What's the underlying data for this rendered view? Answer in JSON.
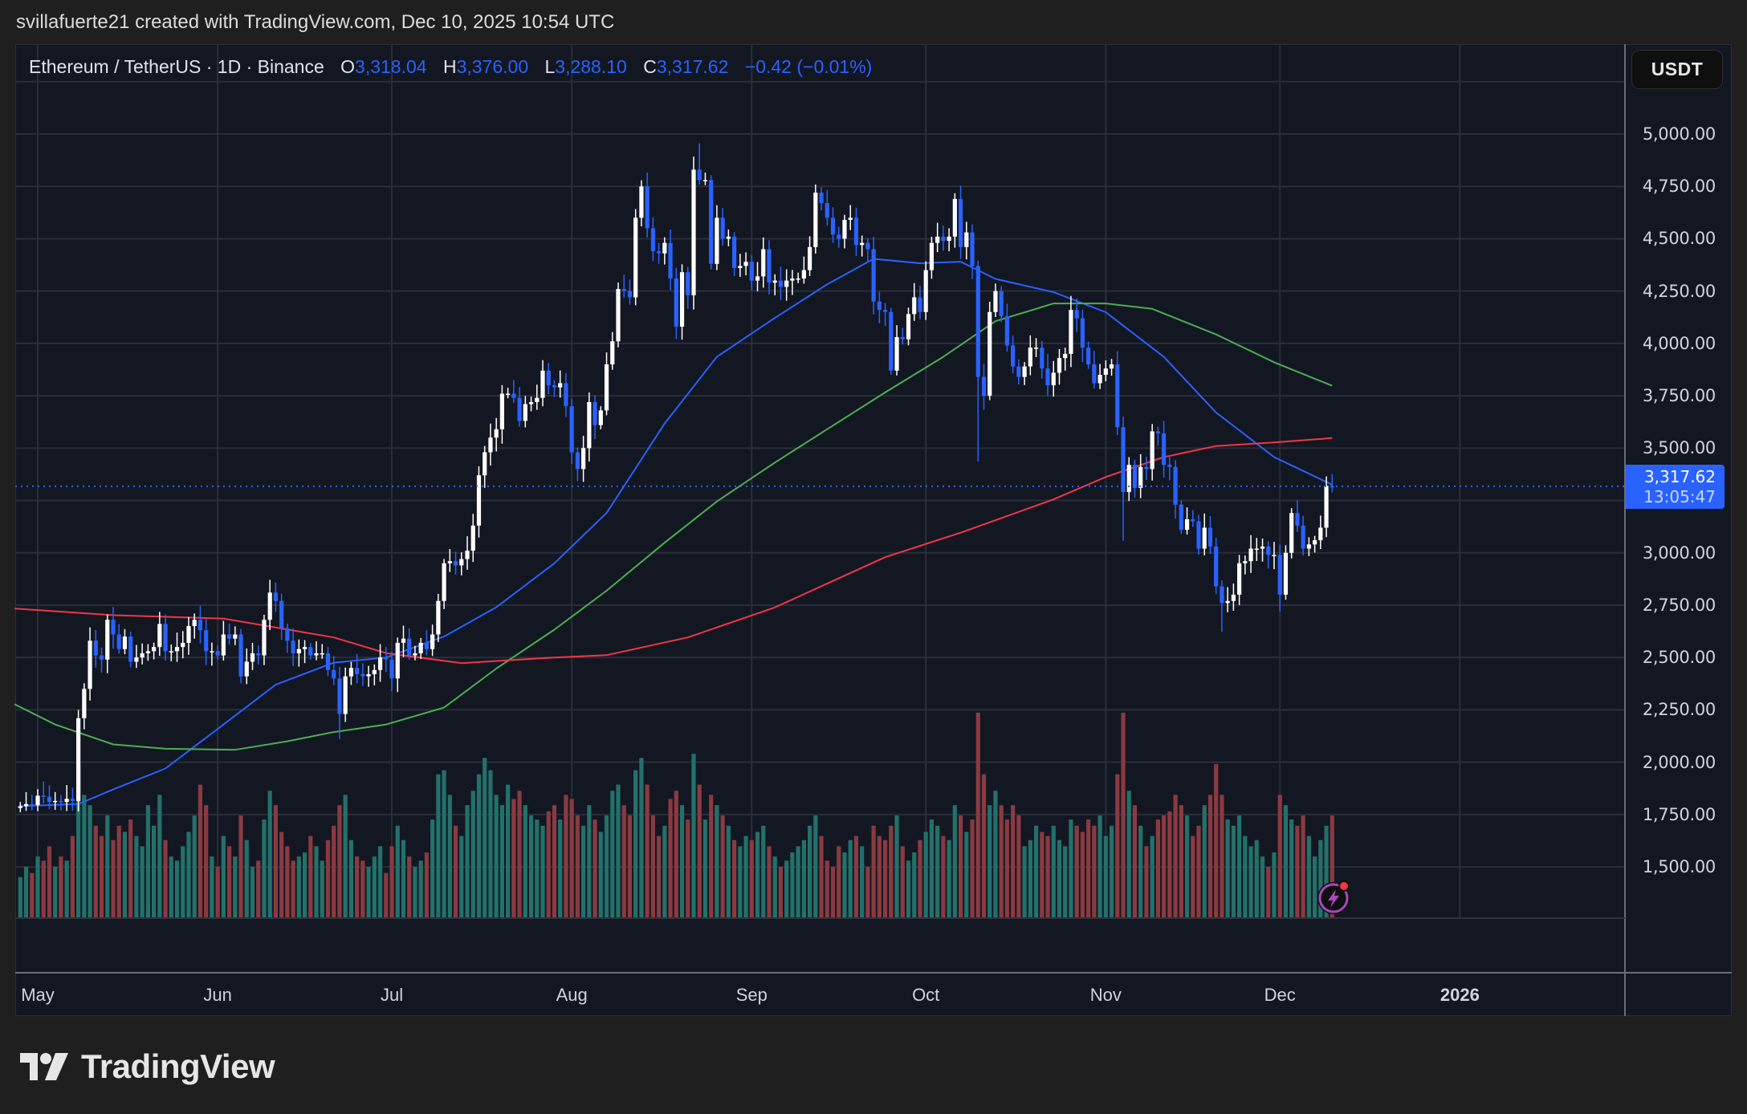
{
  "header": {
    "credit": "svillafuerte21 created with TradingView.com, Dec 10, 2025 10:54 UTC"
  },
  "legend": {
    "symbol": "Ethereum / TetherUS · 1D · Binance",
    "o_label": "O",
    "o": "3,318.04",
    "h_label": "H",
    "h": "3,376.00",
    "l_label": "L",
    "l": "3,288.10",
    "c_label": "C",
    "c": "3,317.62",
    "change": "−0.42 (−0.01%)"
  },
  "currency_button": "USDT",
  "last_price": {
    "value": "3,317.62",
    "countdown": "13:05:47"
  },
  "logo": {
    "text": "TradingView"
  },
  "colors": {
    "background": "#131722",
    "page": "#1f1f1f",
    "grid": "#2a2e39",
    "up_candle": "#ffffff",
    "down_candle": "#2962ff",
    "volume_up": "#22716a",
    "volume_down": "#8a3a40",
    "accent": "#2962ff",
    "alert_icon": "#ab47bc"
  },
  "chart_data": {
    "type": "candlestick",
    "title": "Ethereum / TetherUS · 1D · Binance",
    "interval": "1D",
    "first_date": "2025-04-28",
    "ylim": [
      1300,
      5250
    ],
    "y_axis": {
      "position": "right",
      "unit": "USDT",
      "ticks": [
        {
          "value": 5000,
          "label": "5,000.00"
        },
        {
          "value": 4750,
          "label": "4,750.00"
        },
        {
          "value": 4500,
          "label": "4,500.00"
        },
        {
          "value": 4250,
          "label": "4,250.00"
        },
        {
          "value": 4000,
          "label": "4,000.00"
        },
        {
          "value": 3750,
          "label": "3,750.00"
        },
        {
          "value": 3500,
          "label": "3,500.00"
        },
        {
          "value": 3000,
          "label": "3,000.00"
        },
        {
          "value": 2750,
          "label": "2,750.00"
        },
        {
          "value": 2500,
          "label": "2,500.00"
        },
        {
          "value": 2250,
          "label": "2,250.00"
        },
        {
          "value": 2000,
          "label": "2,000.00"
        },
        {
          "value": 1750,
          "label": "1,750.00"
        },
        {
          "value": 1500,
          "label": "1,500.00"
        }
      ]
    },
    "x_axis": {
      "ticks": [
        {
          "date": "2025-05-01",
          "label": "May"
        },
        {
          "date": "2025-06-01",
          "label": "Jun"
        },
        {
          "date": "2025-07-01",
          "label": "Jul"
        },
        {
          "date": "2025-08-01",
          "label": "Aug"
        },
        {
          "date": "2025-09-01",
          "label": "Sep"
        },
        {
          "date": "2025-10-01",
          "label": "Oct"
        },
        {
          "date": "2025-11-01",
          "label": "Nov"
        },
        {
          "date": "2025-12-01",
          "label": "Dec"
        },
        {
          "date": "2026-01-01",
          "label": "2026",
          "bold": true
        }
      ]
    },
    "grid": true,
    "last_candle": {
      "open": 3318.04,
      "high": 3376.0,
      "low": 3288.1,
      "close": 3317.62
    },
    "closes": [
      1790,
      1800,
      1795,
      1840,
      1835,
      1810,
      1815,
      1810,
      1825,
      1815,
      2210,
      2350,
      2580,
      2510,
      2490,
      2680,
      2610,
      2540,
      2600,
      2480,
      2500,
      2520,
      2530,
      2550,
      2660,
      2530,
      2530,
      2550,
      2570,
      2650,
      2680,
      2630,
      2530,
      2530,
      2510,
      2610,
      2590,
      2610,
      2410,
      2480,
      2520,
      2510,
      2680,
      2810,
      2770,
      2640,
      2580,
      2520,
      2540,
      2550,
      2510,
      2520,
      2520,
      2440,
      2400,
      2230,
      2410,
      2450,
      2420,
      2410,
      2420,
      2440,
      2500,
      2490,
      2400,
      2570,
      2590,
      2510,
      2520,
      2570,
      2540,
      2610,
      2770,
      2950,
      2960,
      2940,
      2970,
      3010,
      3130,
      3370,
      3480,
      3550,
      3590,
      3760,
      3760,
      3740,
      3630,
      3710,
      3720,
      3740,
      3870,
      3800,
      3790,
      3810,
      3700,
      3480,
      3400,
      3500,
      3720,
      3610,
      3680,
      3900,
      4010,
      4260,
      4250,
      4220,
      4600,
      4750,
      4550,
      4440,
      4430,
      4480,
      4310,
      4080,
      4340,
      4230,
      4830,
      4780,
      4780,
      4380,
      4600,
      4500,
      4510,
      4360,
      4370,
      4390,
      4300,
      4320,
      4450,
      4290,
      4300,
      4270,
      4300,
      4310,
      4310,
      4350,
      4460,
      4720,
      4670,
      4600,
      4520,
      4500,
      4590,
      4600,
      4470,
      4480,
      4450,
      4200,
      4160,
      4150,
      3870,
      4030,
      4020,
      4140,
      4220,
      4150,
      4350,
      4480,
      4510,
      4490,
      4510,
      4690,
      4460,
      4530,
      4370,
      3840,
      3750,
      4150,
      4250,
      4130,
      3990,
      3890,
      3840,
      3890,
      3980,
      3980,
      3880,
      3800,
      3860,
      3930,
      3950,
      4160,
      4120,
      3980,
      3900,
      3810,
      3850,
      3880,
      3900,
      3600,
      3290,
      3420,
      3310,
      3410,
      3400,
      3580,
      3570,
      3420,
      3410,
      3230,
      3110,
      3160,
      3150,
      3020,
      3120,
      3030,
      2840,
      2760,
      2770,
      2800,
      2950,
      2960,
      3020,
      3020,
      3030,
      2990,
      2990,
      2800,
      3000,
      3190,
      3130,
      3020,
      3040,
      3060,
      3120,
      3320,
      3317.62
    ],
    "notable_wicks": [
      {
        "date": "2025-06-22",
        "low": 2111
      },
      {
        "date": "2025-08-23",
        "high": 4956
      },
      {
        "date": "2025-10-10",
        "low": 3435
      },
      {
        "date": "2025-11-04",
        "low": 3057
      },
      {
        "date": "2025-11-21",
        "low": 2623
      },
      {
        "date": "2025-12-01",
        "low": 2719
      }
    ],
    "volume_relative": [
      20,
      25,
      22,
      30,
      28,
      35,
      25,
      30,
      28,
      40,
      75,
      60,
      55,
      45,
      40,
      50,
      38,
      45,
      42,
      48,
      40,
      35,
      55,
      45,
      60,
      38,
      30,
      28,
      35,
      42,
      50,
      65,
      55,
      30,
      25,
      40,
      35,
      30,
      50,
      38,
      25,
      28,
      48,
      62,
      55,
      42,
      35,
      28,
      30,
      32,
      40,
      35,
      28,
      38,
      45,
      55,
      60,
      38,
      30,
      28,
      25,
      30,
      35,
      22,
      35,
      45,
      38,
      30,
      25,
      28,
      32,
      48,
      70,
      72,
      60,
      45,
      40,
      55,
      62,
      70,
      78,
      72,
      60,
      55,
      65,
      58,
      62,
      55,
      50,
      48,
      45,
      52,
      55,
      48,
      60,
      58,
      50,
      45,
      55,
      48,
      42,
      50,
      62,
      65,
      55,
      50,
      72,
      78,
      65,
      50,
      40,
      45,
      58,
      62,
      55,
      48,
      80,
      65,
      48,
      60,
      55,
      50,
      45,
      38,
      35,
      40,
      38,
      42,
      45,
      35,
      30,
      25,
      28,
      32,
      35,
      38,
      45,
      50,
      40,
      28,
      25,
      35,
      32,
      38,
      40,
      35,
      25,
      45,
      40,
      38,
      45,
      50,
      35,
      28,
      32,
      38,
      42,
      48,
      45,
      40,
      38,
      55,
      50,
      42,
      48,
      100,
      70,
      55,
      62,
      55,
      48,
      55,
      50,
      35,
      38,
      45,
      42,
      40,
      45,
      38,
      35,
      48,
      45,
      42,
      48,
      45,
      50,
      40,
      45,
      70,
      100,
      62,
      55,
      45,
      35,
      40,
      48,
      50,
      52,
      60,
      55,
      50,
      40,
      45,
      55,
      60,
      75,
      60,
      48,
      45,
      50,
      40,
      35,
      38,
      30,
      25,
      32,
      60,
      55,
      48,
      45,
      50,
      40,
      30,
      38,
      45,
      50
    ],
    "moving_averages": [
      {
        "color": "#2962ff",
        "points": [
          [
            "2025-04-28",
            1790
          ],
          [
            "2025-05-08",
            1800
          ],
          [
            "2025-05-14",
            1870
          ],
          [
            "2025-05-23",
            1970
          ],
          [
            "2025-06-02",
            2180
          ],
          [
            "2025-06-11",
            2370
          ],
          [
            "2025-06-21",
            2475
          ],
          [
            "2025-06-30",
            2500
          ],
          [
            "2025-07-10",
            2600
          ],
          [
            "2025-07-19",
            2740
          ],
          [
            "2025-07-29",
            2950
          ],
          [
            "2025-08-07",
            3190
          ],
          [
            "2025-08-17",
            3617
          ],
          [
            "2025-08-26",
            3936
          ],
          [
            "2025-09-05",
            4122
          ],
          [
            "2025-09-14",
            4282
          ],
          [
            "2025-09-22",
            4404
          ],
          [
            "2025-09-30",
            4383
          ],
          [
            "2025-10-07",
            4390
          ],
          [
            "2025-10-13",
            4308
          ],
          [
            "2025-10-23",
            4245
          ],
          [
            "2025-11-01",
            4149
          ],
          [
            "2025-11-11",
            3936
          ],
          [
            "2025-11-20",
            3670
          ],
          [
            "2025-11-30",
            3457
          ],
          [
            "2025-12-10",
            3325
          ]
        ]
      },
      {
        "color": "#4caf50",
        "points": [
          [
            "2025-04-27",
            2277
          ],
          [
            "2025-05-04",
            2180
          ],
          [
            "2025-05-14",
            2085
          ],
          [
            "2025-05-23",
            2064
          ],
          [
            "2025-06-04",
            2059
          ],
          [
            "2025-06-13",
            2100
          ],
          [
            "2025-06-21",
            2144
          ],
          [
            "2025-06-30",
            2180
          ],
          [
            "2025-07-10",
            2261
          ],
          [
            "2025-07-19",
            2447
          ],
          [
            "2025-07-29",
            2633
          ],
          [
            "2025-08-07",
            2819
          ],
          [
            "2025-08-17",
            3048
          ],
          [
            "2025-08-26",
            3245
          ],
          [
            "2025-09-05",
            3431
          ],
          [
            "2025-09-14",
            3590
          ],
          [
            "2025-09-24",
            3766
          ],
          [
            "2025-10-04",
            3936
          ],
          [
            "2025-10-13",
            4106
          ],
          [
            "2025-10-23",
            4191
          ],
          [
            "2025-11-01",
            4191
          ],
          [
            "2025-11-09",
            4165
          ],
          [
            "2025-11-20",
            4043
          ],
          [
            "2025-11-30",
            3910
          ],
          [
            "2025-12-10",
            3798
          ]
        ]
      },
      {
        "color": "#f23645",
        "points": [
          [
            "2025-04-27",
            2734
          ],
          [
            "2025-05-14",
            2702
          ],
          [
            "2025-06-02",
            2686
          ],
          [
            "2025-06-21",
            2596
          ],
          [
            "2025-06-30",
            2521
          ],
          [
            "2025-07-13",
            2473
          ],
          [
            "2025-07-29",
            2500
          ],
          [
            "2025-08-07",
            2511
          ],
          [
            "2025-08-21",
            2596
          ],
          [
            "2025-09-05",
            2739
          ],
          [
            "2025-09-24",
            2979
          ],
          [
            "2025-10-07",
            3096
          ],
          [
            "2025-10-23",
            3255
          ],
          [
            "2025-11-01",
            3362
          ],
          [
            "2025-11-11",
            3457
          ],
          [
            "2025-11-20",
            3510
          ],
          [
            "2025-11-30",
            3527
          ],
          [
            "2025-12-10",
            3548
          ]
        ]
      }
    ]
  }
}
